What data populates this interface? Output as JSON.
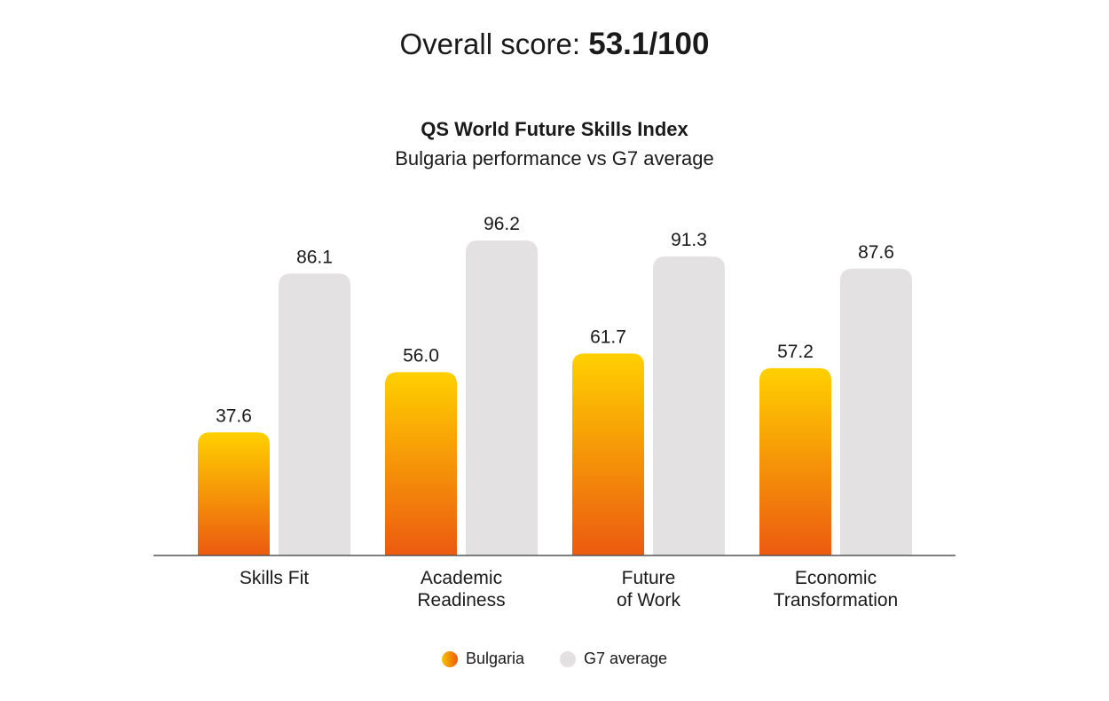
{
  "header": {
    "overall_label": "Overall score:",
    "overall_value": "53.1/100"
  },
  "chart_data": {
    "type": "bar",
    "title": "QS World Future Skills Index",
    "subtitle": "Bulgaria performance vs G7 average",
    "categories": [
      [
        "Skills Fit"
      ],
      [
        "Academic",
        "Readiness"
      ],
      [
        "Future",
        "of Work"
      ],
      [
        "Economic",
        "Transformation"
      ]
    ],
    "series": [
      {
        "name": "Bulgaria",
        "values": [
          37.6,
          56.0,
          61.7,
          57.2
        ],
        "color_top": "#ffd000",
        "color_bottom": "#ec5a10"
      },
      {
        "name": "G7 average",
        "values": [
          86.1,
          96.2,
          91.3,
          87.6
        ],
        "color": "#e3e1e2"
      }
    ],
    "value_labels": [
      [
        "37.6",
        "56.0",
        "61.7",
        "57.2"
      ],
      [
        "86.1",
        "96.2",
        "91.3",
        "87.6"
      ]
    ],
    "ylim": [
      0,
      100
    ],
    "grid": false,
    "legend_position": "bottom-center"
  },
  "legend": {
    "bulgaria": "Bulgaria",
    "g7": "G7 average"
  }
}
